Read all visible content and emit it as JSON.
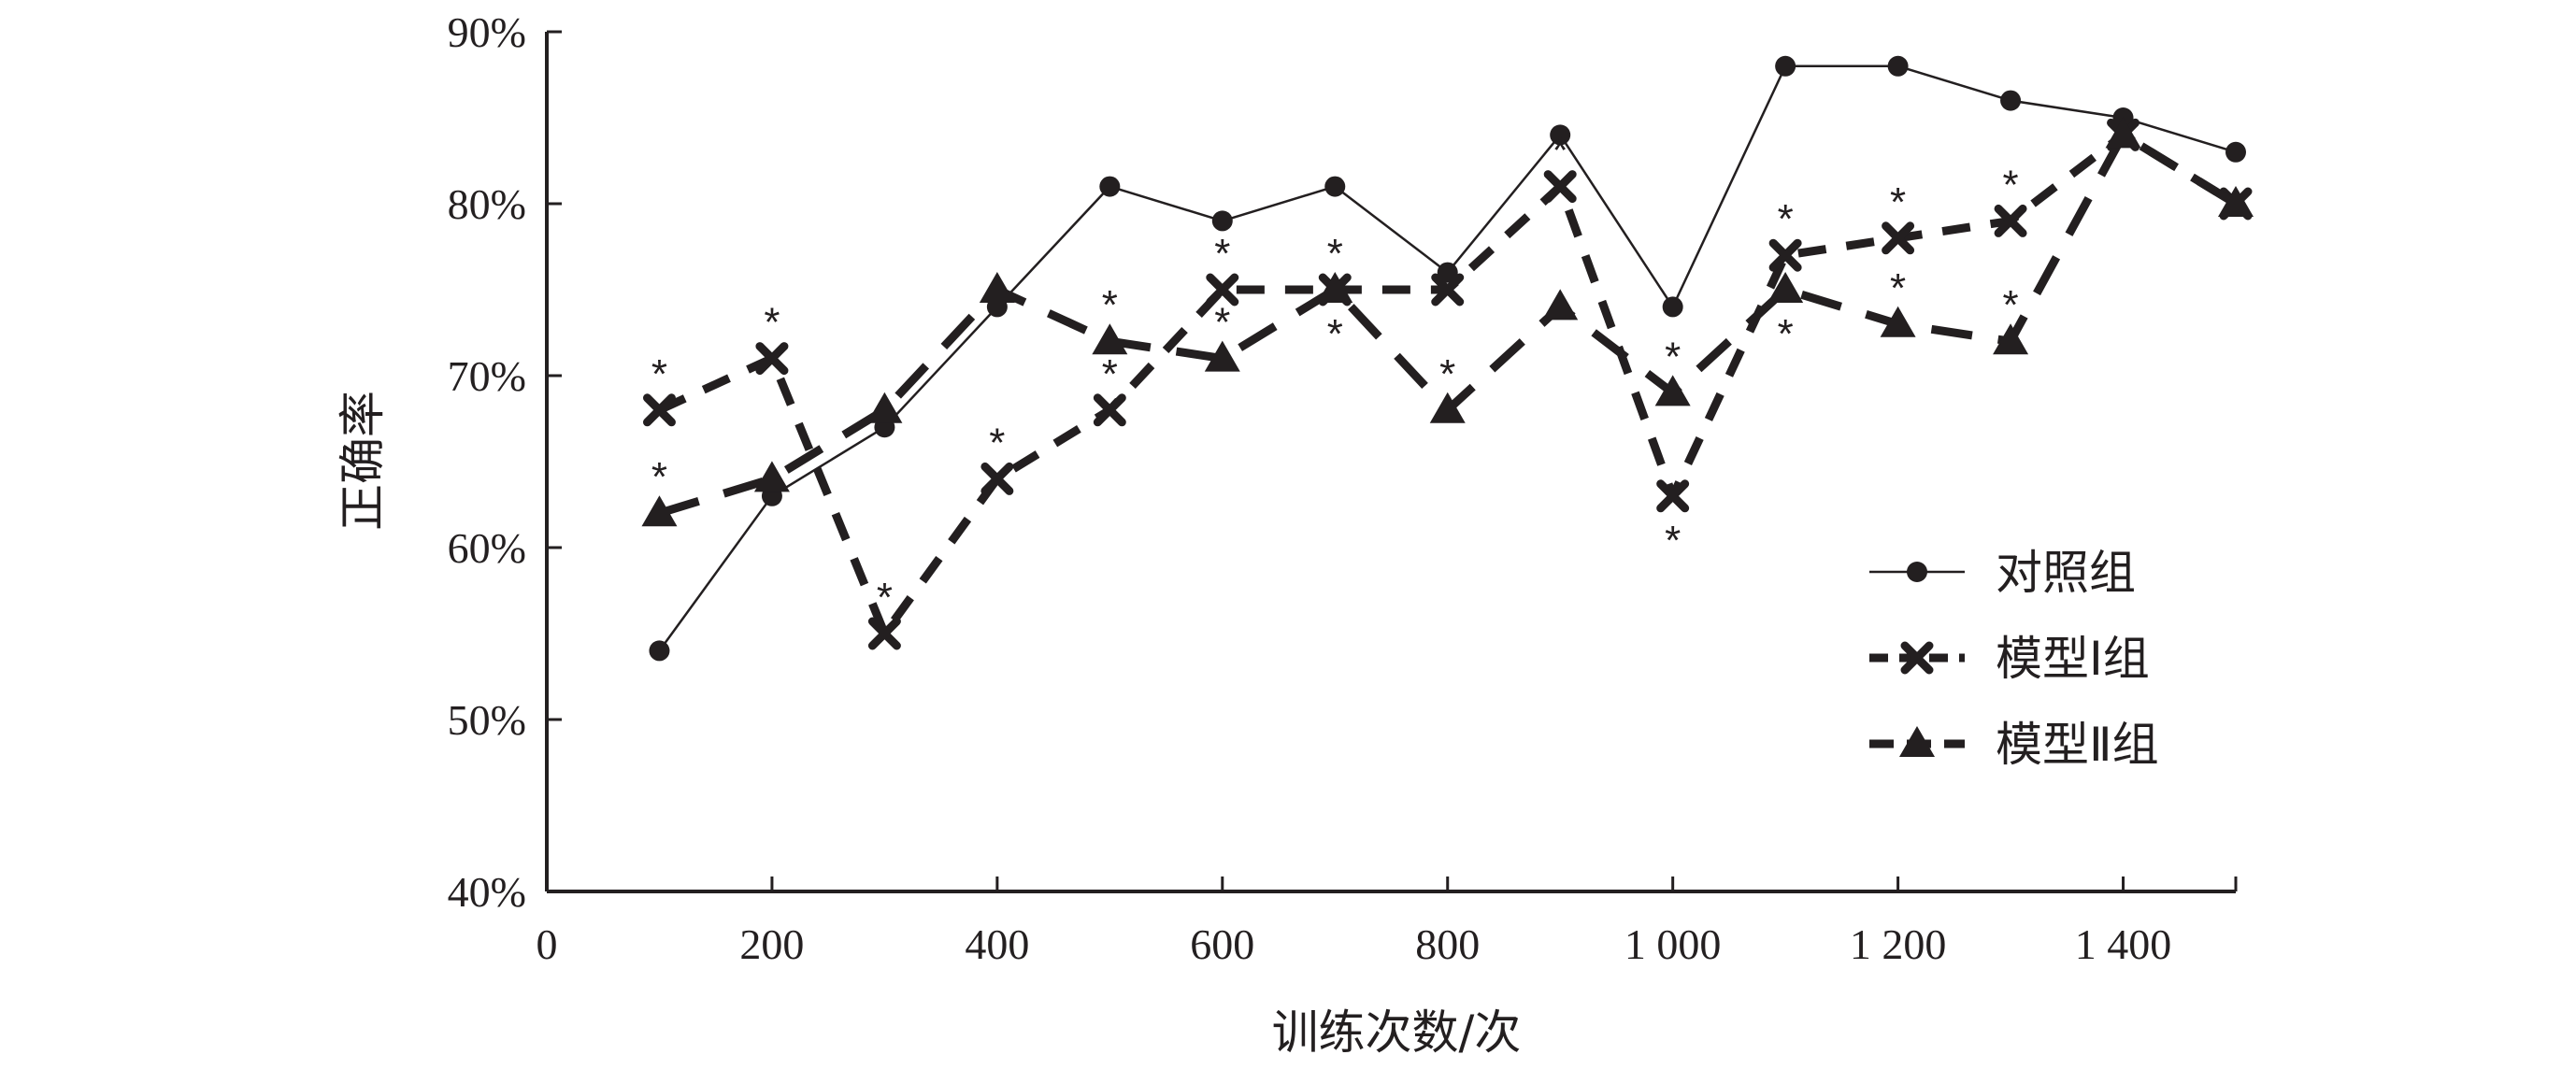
{
  "chart_data": {
    "type": "line",
    "xlabel": "训练次数/次",
    "ylabel": "正确率",
    "x": [
      100,
      200,
      300,
      400,
      500,
      600,
      700,
      800,
      900,
      1000,
      1100,
      1200,
      1300,
      1400,
      1500
    ],
    "xlim": [
      0,
      1500
    ],
    "ylim": [
      40,
      90
    ],
    "x_ticks": [
      0,
      200,
      400,
      600,
      800,
      1000,
      1200,
      1400
    ],
    "x_tick_labels": [
      "0",
      "200",
      "400",
      "600",
      "800",
      "1 000",
      "1 200",
      "1 400"
    ],
    "y_ticks": [
      40,
      50,
      60,
      70,
      80,
      90
    ],
    "y_tick_labels": [
      "40%",
      "50%",
      "60%",
      "70%",
      "80%",
      "90%"
    ],
    "grid": false,
    "legend_position": "right",
    "series": [
      {
        "name": "对照组",
        "marker": "circle",
        "line": "solid",
        "values": [
          54,
          63,
          67,
          74,
          81,
          79,
          81,
          76,
          84,
          74,
          88,
          88,
          86,
          85,
          83
        ],
        "significance_above": [],
        "significance_below": []
      },
      {
        "name": "模型Ⅰ组",
        "marker": "x",
        "line": "dashed",
        "values": [
          68,
          71,
          55,
          64,
          68,
          75,
          75,
          75,
          81,
          63,
          77,
          78,
          79,
          84,
          80
        ],
        "significance_above": [
          100,
          200,
          300,
          400,
          500,
          600,
          700,
          900,
          1100,
          1200,
          1300
        ],
        "significance_below": [
          1000
        ]
      },
      {
        "name": "模型Ⅱ组",
        "marker": "triangle",
        "line": "dashed",
        "values": [
          62,
          64,
          68,
          75,
          72,
          71,
          75,
          68,
          74,
          69,
          75,
          73,
          72,
          84,
          80
        ],
        "significance_above": [
          100,
          500,
          600,
          800,
          1000,
          1200,
          1300
        ],
        "significance_below": [
          700,
          1100
        ]
      }
    ],
    "significance_symbol": "*",
    "colors": {
      "line": "#231f20",
      "background": "#ffffff"
    }
  }
}
